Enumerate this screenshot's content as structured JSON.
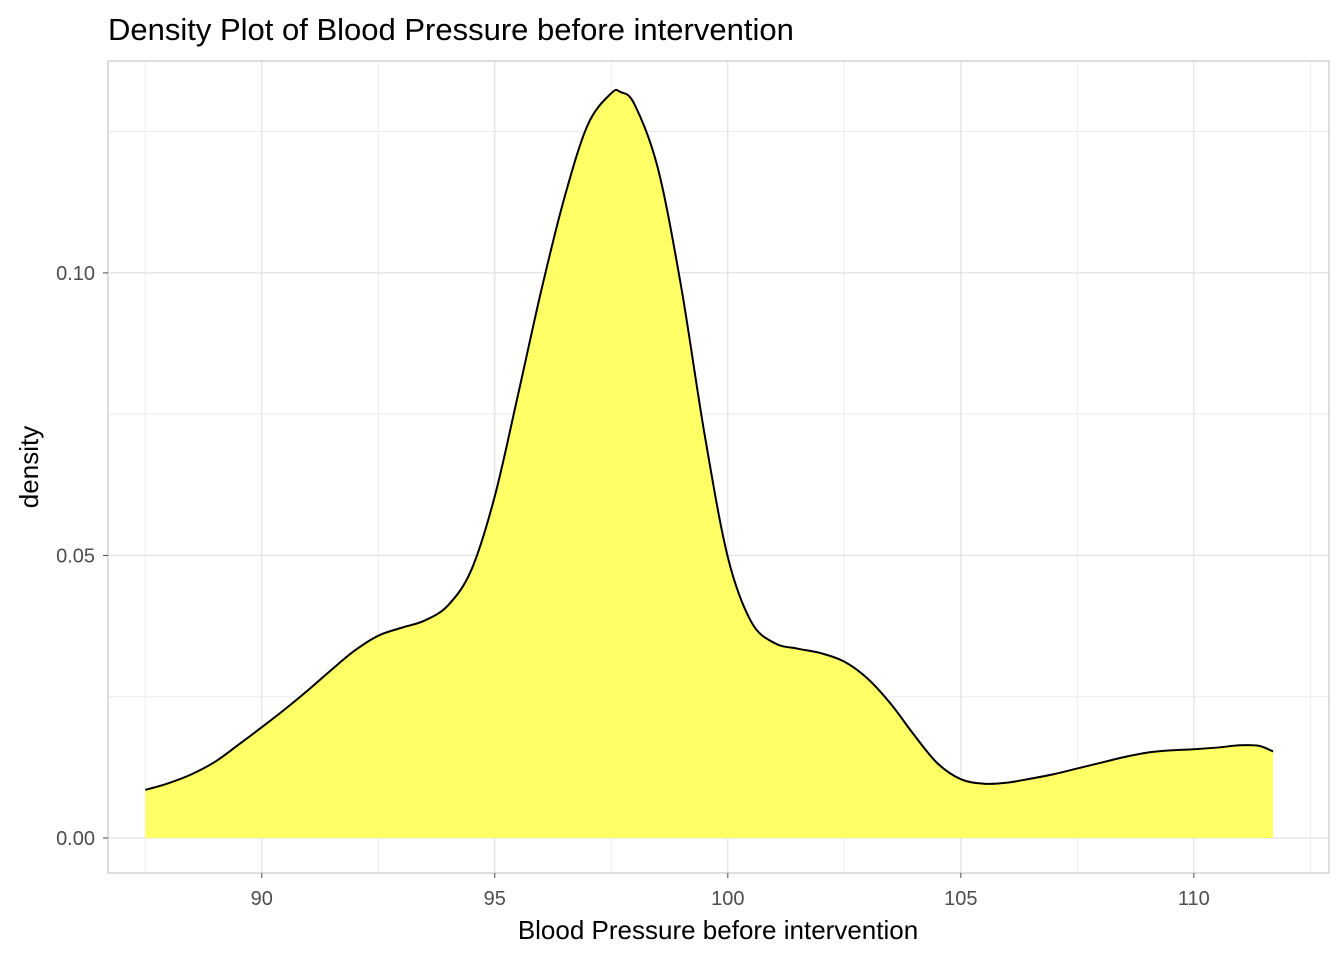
{
  "chart_data": {
    "type": "area",
    "title": "Density Plot of Blood Pressure before  intervention",
    "xlabel": "Blood Pressure before  intervention",
    "ylabel": "density",
    "xlim": [
      86.7,
      112.9
    ],
    "ylim": [
      -0.0062,
      0.1375
    ],
    "x_ticks": [
      90,
      95,
      100,
      105,
      110
    ],
    "x_tick_labels": [
      "90",
      "95",
      "100",
      "105",
      "110"
    ],
    "y_ticks": [
      0.0,
      0.05,
      0.1
    ],
    "y_tick_labels": [
      "0.00",
      "0.05",
      "0.10"
    ],
    "grid": true,
    "fill_color": "#ffff66",
    "line_color": "#000000",
    "series": [
      {
        "x": [
          87.5,
          88.0,
          88.5,
          89.0,
          89.5,
          90.0,
          90.5,
          91.0,
          91.5,
          92.0,
          92.5,
          93.0,
          93.5,
          94.0,
          94.5,
          95.0,
          95.5,
          96.0,
          96.5,
          97.0,
          97.5,
          97.7,
          98.0,
          98.5,
          99.0,
          99.5,
          100.0,
          100.5,
          101.0,
          101.5,
          102.0,
          102.5,
          103.0,
          103.5,
          104.0,
          104.5,
          105.0,
          105.5,
          106.0,
          106.5,
          107.0,
          107.5,
          108.0,
          108.5,
          109.0,
          109.5,
          110.0,
          110.5,
          111.0,
          111.4,
          111.7
        ],
        "y": [
          0.0085,
          0.0097,
          0.0113,
          0.0135,
          0.0165,
          0.0196,
          0.0228,
          0.0262,
          0.0298,
          0.0332,
          0.0358,
          0.0372,
          0.0385,
          0.0412,
          0.0475,
          0.0605,
          0.0785,
          0.097,
          0.1135,
          0.1263,
          0.1318,
          0.132,
          0.1298,
          0.1185,
          0.0975,
          0.0715,
          0.0497,
          0.0383,
          0.0345,
          0.0335,
          0.0327,
          0.0312,
          0.0282,
          0.0237,
          0.0182,
          0.0132,
          0.0104,
          0.0096,
          0.0098,
          0.0105,
          0.0113,
          0.0123,
          0.0133,
          0.0143,
          0.0151,
          0.0155,
          0.0157,
          0.016,
          0.0164,
          0.0163,
          0.0153
        ]
      }
    ]
  }
}
